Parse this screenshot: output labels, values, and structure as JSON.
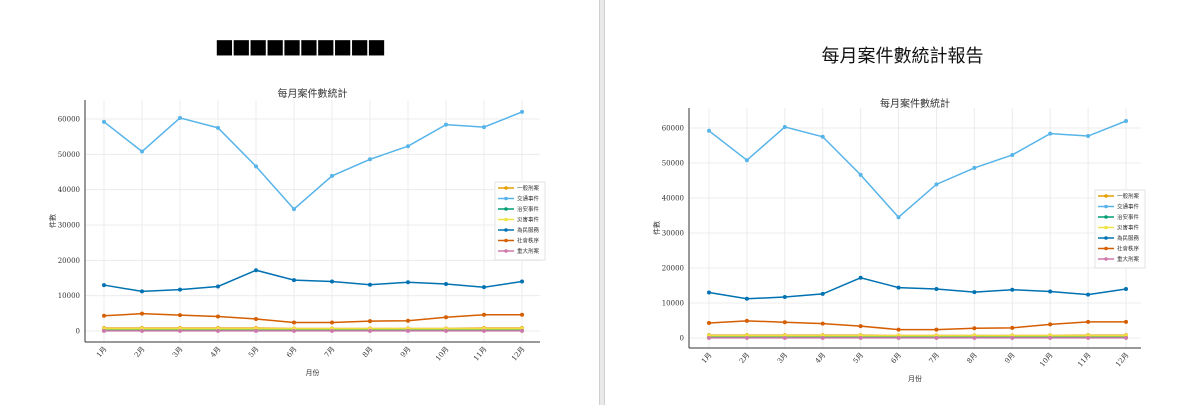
{
  "panels": [
    {
      "heading": "■■■■■■■■■■"
    },
    {
      "heading": "每月案件數統計報告"
    }
  ],
  "chart_data": [
    {
      "type": "line",
      "title": "每月案件數統計",
      "xlabel": "月份",
      "ylabel": "件數",
      "categories": [
        "1月",
        "2月",
        "3月",
        "4月",
        "5月",
        "6月",
        "7月",
        "8月",
        "9月",
        "10月",
        "11月",
        "12月"
      ],
      "yticks": [
        "0",
        "10000",
        "20000",
        "30000",
        "40000",
        "50000",
        "60000"
      ],
      "ylim": [
        -3000,
        65000
      ],
      "grid": true,
      "legend": "center-right",
      "series": [
        {
          "name": "一般刑案",
          "color": "#e69f00",
          "values": [
            800,
            800,
            800,
            800,
            800,
            700,
            700,
            700,
            700,
            700,
            800,
            800
          ]
        },
        {
          "name": "交通事件",
          "color": "#56b4e9",
          "values": [
            59200,
            50800,
            60300,
            57500,
            46600,
            34500,
            43900,
            48600,
            52300,
            58400,
            57700,
            62000
          ]
        },
        {
          "name": "治安事件",
          "color": "#009e73",
          "values": [
            300,
            300,
            300,
            300,
            300,
            300,
            300,
            300,
            300,
            300,
            300,
            300
          ]
        },
        {
          "name": "災害事件",
          "color": "#f0e442",
          "values": [
            600,
            600,
            600,
            600,
            600,
            600,
            600,
            600,
            600,
            600,
            600,
            600
          ]
        },
        {
          "name": "為民服務",
          "color": "#0072b2",
          "values": [
            13000,
            11200,
            11700,
            12600,
            17200,
            14400,
            14000,
            13100,
            13800,
            13300,
            12400,
            14000
          ]
        },
        {
          "name": "社會秩序",
          "color": "#d55e00",
          "values": [
            4300,
            4900,
            4500,
            4100,
            3400,
            2400,
            2400,
            2800,
            2900,
            3900,
            4600,
            4600
          ]
        },
        {
          "name": "重大刑案",
          "color": "#cc79a7",
          "values": [
            50,
            50,
            50,
            50,
            50,
            50,
            50,
            50,
            50,
            50,
            50,
            50
          ]
        }
      ]
    },
    {
      "type": "line",
      "title": "每月案件數統計",
      "xlabel": "月份",
      "ylabel": "件數",
      "categories": [
        "1月",
        "2月",
        "3月",
        "4月",
        "5月",
        "6月",
        "7月",
        "8月",
        "9月",
        "10月",
        "11月",
        "12月"
      ],
      "yticks": [
        "0",
        "10000",
        "20000",
        "30000",
        "40000",
        "50000",
        "60000"
      ],
      "ylim": [
        -3000,
        65000
      ],
      "grid": true,
      "legend": "center-right",
      "series": [
        {
          "name": "一般刑案",
          "color": "#e69f00",
          "values": [
            800,
            800,
            800,
            800,
            800,
            700,
            700,
            700,
            700,
            700,
            800,
            800
          ]
        },
        {
          "name": "交通事件",
          "color": "#56b4e9",
          "values": [
            59200,
            50800,
            60300,
            57500,
            46600,
            34500,
            43900,
            48600,
            52300,
            58400,
            57700,
            62000
          ]
        },
        {
          "name": "治安事件",
          "color": "#009e73",
          "values": [
            300,
            300,
            300,
            300,
            300,
            300,
            300,
            300,
            300,
            300,
            300,
            300
          ]
        },
        {
          "name": "災害事件",
          "color": "#f0e442",
          "values": [
            600,
            600,
            600,
            600,
            600,
            600,
            600,
            600,
            600,
            600,
            600,
            600
          ]
        },
        {
          "name": "為民服務",
          "color": "#0072b2",
          "values": [
            13000,
            11200,
            11700,
            12600,
            17200,
            14400,
            14000,
            13100,
            13800,
            13300,
            12400,
            14000
          ]
        },
        {
          "name": "社會秩序",
          "color": "#d55e00",
          "values": [
            4300,
            4900,
            4500,
            4100,
            3400,
            2400,
            2400,
            2800,
            2900,
            3900,
            4600,
            4600
          ]
        },
        {
          "name": "重大刑案",
          "color": "#cc79a7",
          "values": [
            50,
            50,
            50,
            50,
            50,
            50,
            50,
            50,
            50,
            50,
            50,
            50
          ]
        }
      ]
    }
  ]
}
